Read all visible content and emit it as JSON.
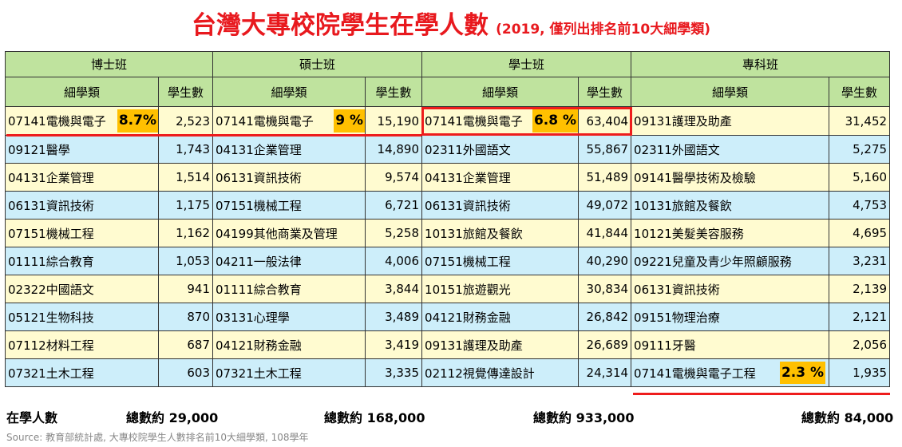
{
  "chart_data": {
    "type": "table",
    "title": "台灣大專校院學生在學人數",
    "subtitle": "(2019, 僅列出排名前10大細學類)",
    "groups": [
      {
        "name": "博士班",
        "col_category": "細學類",
        "col_count": "學生數",
        "rows": [
          {
            "category": "07141電機與電子",
            "count": "2,523",
            "pct": "8.7%"
          },
          {
            "category": "09121醫學",
            "count": "1,743"
          },
          {
            "category": "04131企業管理",
            "count": "1,514"
          },
          {
            "category": "06131資訊技術",
            "count": "1,175"
          },
          {
            "category": "07151機械工程",
            "count": "1,162"
          },
          {
            "category": "01111綜合教育",
            "count": "1,053"
          },
          {
            "category": "02322中國語文",
            "count": "941"
          },
          {
            "category": "05121生物科技",
            "count": "870"
          },
          {
            "category": "07112材料工程",
            "count": "687"
          },
          {
            "category": "07321土木工程",
            "count": "603"
          }
        ],
        "total_label": "總數約 29,000"
      },
      {
        "name": "碩士班",
        "col_category": "細學類",
        "col_count": "學生數",
        "rows": [
          {
            "category": "07141電機與電子",
            "count": "15,190",
            "pct": "9 %"
          },
          {
            "category": "04131企業管理",
            "count": "14,890"
          },
          {
            "category": "06131資訊技術",
            "count": "9,574"
          },
          {
            "category": "07151機械工程",
            "count": "6,721"
          },
          {
            "category": "04199其他商業及管理",
            "count": "5,258"
          },
          {
            "category": "04211一般法律",
            "count": "4,006"
          },
          {
            "category": "01111綜合教育",
            "count": "3,844"
          },
          {
            "category": "03131心理學",
            "count": "3,489"
          },
          {
            "category": "04121財務金融",
            "count": "3,419"
          },
          {
            "category": "07321土木工程",
            "count": "3,335"
          }
        ],
        "total_label": "總數約 168,000"
      },
      {
        "name": "學士班",
        "col_category": "細學類",
        "col_count": "學生數",
        "rows": [
          {
            "category": "07141電機與電子",
            "count": "63,404",
            "pct": "6.8 %"
          },
          {
            "category": "02311外國語文",
            "count": "55,867"
          },
          {
            "category": "04131企業管理",
            "count": "51,489"
          },
          {
            "category": "06131資訊技術",
            "count": "49,072"
          },
          {
            "category": "10131旅館及餐飲",
            "count": "41,844"
          },
          {
            "category": "07151機械工程",
            "count": "40,290"
          },
          {
            "category": "10151旅遊觀光",
            "count": "30,834"
          },
          {
            "category": "04121財務金融",
            "count": "26,842"
          },
          {
            "category": "09131護理及助產",
            "count": "26,689"
          },
          {
            "category": "02112視覺傳達設計",
            "count": "24,314"
          }
        ],
        "total_label": "總數約 933,000"
      },
      {
        "name": "專科班",
        "col_category": "細學類",
        "col_count": "學生數",
        "rows": [
          {
            "category": "09131護理及助產",
            "count": "31,452"
          },
          {
            "category": "02311外國語文",
            "count": "5,275"
          },
          {
            "category": "09141醫學技術及檢驗",
            "count": "5,160"
          },
          {
            "category": "10131旅館及餐飲",
            "count": "4,753"
          },
          {
            "category": "10121美髮美容服務",
            "count": "4,695"
          },
          {
            "category": "09221兒童及青少年照顧服務",
            "count": "3,231"
          },
          {
            "category": "06131資訊技術",
            "count": "2,139"
          },
          {
            "category": "09151物理治療",
            "count": "2,121"
          },
          {
            "category": "09111牙醫",
            "count": "2,056"
          },
          {
            "category": "07141電機與電子工程",
            "count": "1,935",
            "pct": "2.3 %"
          }
        ],
        "total_label": "總數約 84,000"
      }
    ],
    "row_label": "在學人數",
    "source": "Source: 教育部統計處, 大專校院學生人數排名前10大細學類, 108學年"
  }
}
